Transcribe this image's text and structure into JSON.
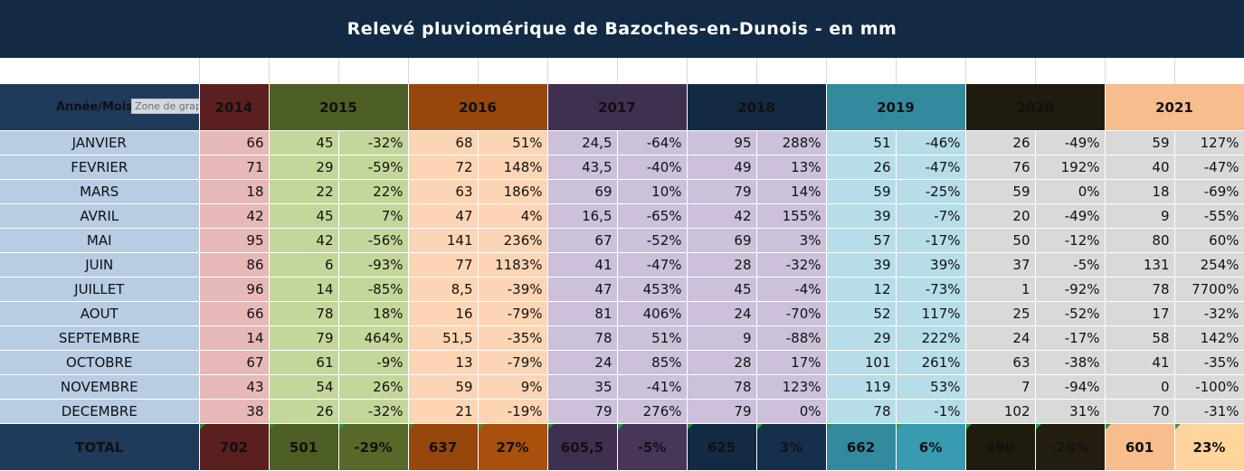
{
  "title": "Relevé pluviomérique de Bazoches-en-Dunois - en mm",
  "header": {
    "label": "Année/Mois",
    "tooltip": "Zone de graphique",
    "years": [
      "2014",
      "2015",
      "2016",
      "2017",
      "2018",
      "2019",
      "2020",
      "2021"
    ]
  },
  "colors": {
    "title_bg": "#132a44",
    "month_col": "#b8cce4",
    "header_bg": [
      "#5c1f1f",
      "#4e5f25",
      "#97470b",
      "#3f3050",
      "#132a44",
      "#338a9e",
      "#1f1b0d",
      "#f7bd8c"
    ],
    "total_bg": [
      "#5c1f1f",
      "#4e5f25",
      "#97470b",
      "#3f3050",
      "#132a44",
      "#338a9e",
      "#1f1b0d",
      "#f7bd8c"
    ],
    "cell_bg": [
      "#e6b8b7",
      "#c4d79b",
      "#fcd5b4",
      "#ccc0da",
      "#ccc0da",
      "#b7dde8",
      "#d9d9d9",
      "#d9d9d9"
    ]
  },
  "rows": [
    {
      "month": "JANVIER",
      "cells": [
        "66",
        "45",
        "-32%",
        "68",
        "51%",
        "24,5",
        "-64%",
        "95",
        "288%",
        "51",
        "-46%",
        "26",
        "-49%",
        "59",
        "127%"
      ]
    },
    {
      "month": "FEVRIER",
      "cells": [
        "71",
        "29",
        "-59%",
        "72",
        "148%",
        "43,5",
        "-40%",
        "49",
        "13%",
        "26",
        "-47%",
        "76",
        "192%",
        "40",
        "-47%"
      ]
    },
    {
      "month": "MARS",
      "cells": [
        "18",
        "22",
        "22%",
        "63",
        "186%",
        "69",
        "10%",
        "79",
        "14%",
        "59",
        "-25%",
        "59",
        "0%",
        "18",
        "-69%"
      ]
    },
    {
      "month": "AVRIL",
      "cells": [
        "42",
        "45",
        "7%",
        "47",
        "4%",
        "16,5",
        "-65%",
        "42",
        "155%",
        "39",
        "-7%",
        "20",
        "-49%",
        "9",
        "-55%"
      ]
    },
    {
      "month": "MAI",
      "cells": [
        "95",
        "42",
        "-56%",
        "141",
        "236%",
        "67",
        "-52%",
        "69",
        "3%",
        "57",
        "-17%",
        "50",
        "-12%",
        "80",
        "60%"
      ]
    },
    {
      "month": "JUIN",
      "cells": [
        "86",
        "6",
        "-93%",
        "77",
        "1183%",
        "41",
        "-47%",
        "28",
        "-32%",
        "39",
        "39%",
        "37",
        "-5%",
        "131",
        "254%"
      ]
    },
    {
      "month": "JUILLET",
      "cells": [
        "96",
        "14",
        "-85%",
        "8,5",
        "-39%",
        "47",
        "453%",
        "45",
        "-4%",
        "12",
        "-73%",
        "1",
        "-92%",
        "78",
        "7700%"
      ]
    },
    {
      "month": "AOUT",
      "cells": [
        "66",
        "78",
        "18%",
        "16",
        "-79%",
        "81",
        "406%",
        "24",
        "-70%",
        "52",
        "117%",
        "25",
        "-52%",
        "17",
        "-32%"
      ]
    },
    {
      "month": "SEPTEMBRE",
      "cells": [
        "14",
        "79",
        "464%",
        "51,5",
        "-35%",
        "78",
        "51%",
        "9",
        "-88%",
        "29",
        "222%",
        "24",
        "-17%",
        "58",
        "142%"
      ]
    },
    {
      "month": "OCTOBRE",
      "cells": [
        "67",
        "61",
        "-9%",
        "13",
        "-79%",
        "24",
        "85%",
        "28",
        "17%",
        "101",
        "261%",
        "63",
        "-38%",
        "41",
        "-35%"
      ]
    },
    {
      "month": "NOVEMBRE",
      "cells": [
        "43",
        "54",
        "26%",
        "59",
        "9%",
        "35",
        "-41%",
        "78",
        "123%",
        "119",
        "53%",
        "7",
        "-94%",
        "0",
        "-100%"
      ]
    },
    {
      "month": "DECEMBRE",
      "cells": [
        "38",
        "26",
        "-32%",
        "21",
        "-19%",
        "79",
        "276%",
        "79",
        "0%",
        "78",
        "-1%",
        "102",
        "31%",
        "70",
        "-31%"
      ]
    }
  ],
  "total": {
    "label": "TOTAL",
    "cells": [
      "702",
      "501",
      "-29%",
      "637",
      "27%",
      "605,5",
      "-5%",
      "625",
      "3%",
      "662",
      "6%",
      "490",
      "-26%",
      "601",
      "23%"
    ]
  }
}
